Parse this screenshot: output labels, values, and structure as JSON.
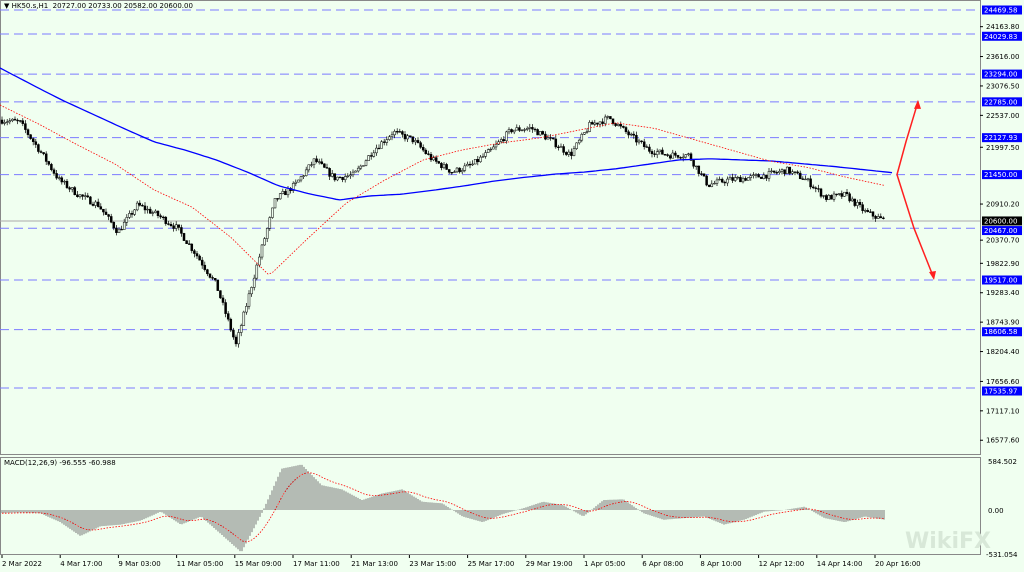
{
  "header": {
    "symbol": "HK50.s,H1",
    "ohlc": "20727.00 20733.00 20582.00 20600.00"
  },
  "macd": {
    "label": "MACD(12,26,9) -96.555 -60.988",
    "axis_top": "584.502",
    "axis_zero": "0.00",
    "axis_bottom": "-531.054"
  },
  "colors": {
    "background": "#f0fff0",
    "candle": "#000000",
    "ma_slow": "#0000ff",
    "ma_fast": "#ff0000",
    "level_line": "#7b7bff",
    "level_badge": "#0000ff",
    "arrow": "#ff2020"
  },
  "chart_data": {
    "type": "candlestick",
    "symbol": "HK50.s",
    "timeframe": "H1",
    "price_range": [
      16300,
      24600
    ],
    "close_path": [
      22452,
      22416,
      21902,
      21352,
      21077,
      20893,
      20398,
      20893,
      20710,
      20471,
      19976,
      19426,
      18326,
      19701,
      20985,
      21260,
      21719,
      21388,
      21443,
      21902,
      22232,
      22085,
      21719,
      21499,
      21627,
      21902,
      22269,
      22305,
      22085,
      21810,
      22361,
      22489,
      22177,
      21902,
      21810,
      21810,
      21260,
      21352,
      21388,
      21443,
      21535,
      21352,
      21022,
      21077,
      20765,
      20600
    ],
    "ma_slow_path": [
      23406,
      23110,
      22820,
      22560,
      22300,
      22050,
      21900,
      21720,
      21500,
      21250,
      21100,
      20985,
      21060,
      21090,
      21160,
      21240,
      21330,
      21400,
      21460,
      21500,
      21560,
      21640,
      21720,
      21740,
      21720,
      21700,
      21650,
      21600,
      21540,
      21480
    ],
    "ma_fast_path": [
      22727,
      22380,
      22000,
      21640,
      21170,
      20850,
      20300,
      19600,
      20280,
      20930,
      21350,
      21720,
      21900,
      22030,
      22120,
      22260,
      22400,
      22300,
      22100,
      21900,
      21700,
      21580,
      21400,
      21250
    ],
    "levels": [
      "24469.58",
      "24029.83",
      "23294.00",
      "22785.00",
      "22127.93",
      "21450.00",
      "20467.00",
      "19517.00",
      "18606.58",
      "17535.97"
    ],
    "current_price": "20600.00",
    "price_ticks": [
      "24163.80",
      "23616.00",
      "23076.50",
      "22537.00",
      "21997.50",
      "20910.20",
      "20370.70",
      "19822.90",
      "19283.40",
      "18743.90",
      "18204.40",
      "17656.60",
      "17117.10",
      "16577.60"
    ],
    "time_labels": [
      "2 Mar 2022",
      "4 Mar 17:00",
      "9 Mar 03:00",
      "11 Mar 05:00",
      "15 Mar 09:00",
      "17 Mar 11:00",
      "21 Mar 13:00",
      "23 Mar 15:00",
      "25 Mar 17:00",
      "29 Mar 19:00",
      "1 Apr 05:00",
      "6 Apr 08:00",
      "8 Apr 10:00",
      "12 Apr 12:00",
      "14 Apr 14:00",
      "20 Apr 16:00"
    ],
    "macd_histogram_path": [
      -40,
      -30,
      -40,
      -150,
      -320,
      -200,
      -180,
      -130,
      -20,
      -180,
      -80,
      -300,
      -520,
      -50,
      500,
      550,
      300,
      250,
      120,
      200,
      250,
      100,
      80,
      -80,
      -150,
      -50,
      20,
      100,
      60,
      -80,
      120,
      130,
      -40,
      -120,
      -100,
      -80,
      -180,
      -120,
      -20,
      0,
      40,
      -100,
      -150,
      -80,
      -120
    ],
    "projection": {
      "up_target": "22785.00",
      "down_targets": [
        "20467.00",
        "19517.00"
      ],
      "pivot": "21450.00"
    }
  }
}
